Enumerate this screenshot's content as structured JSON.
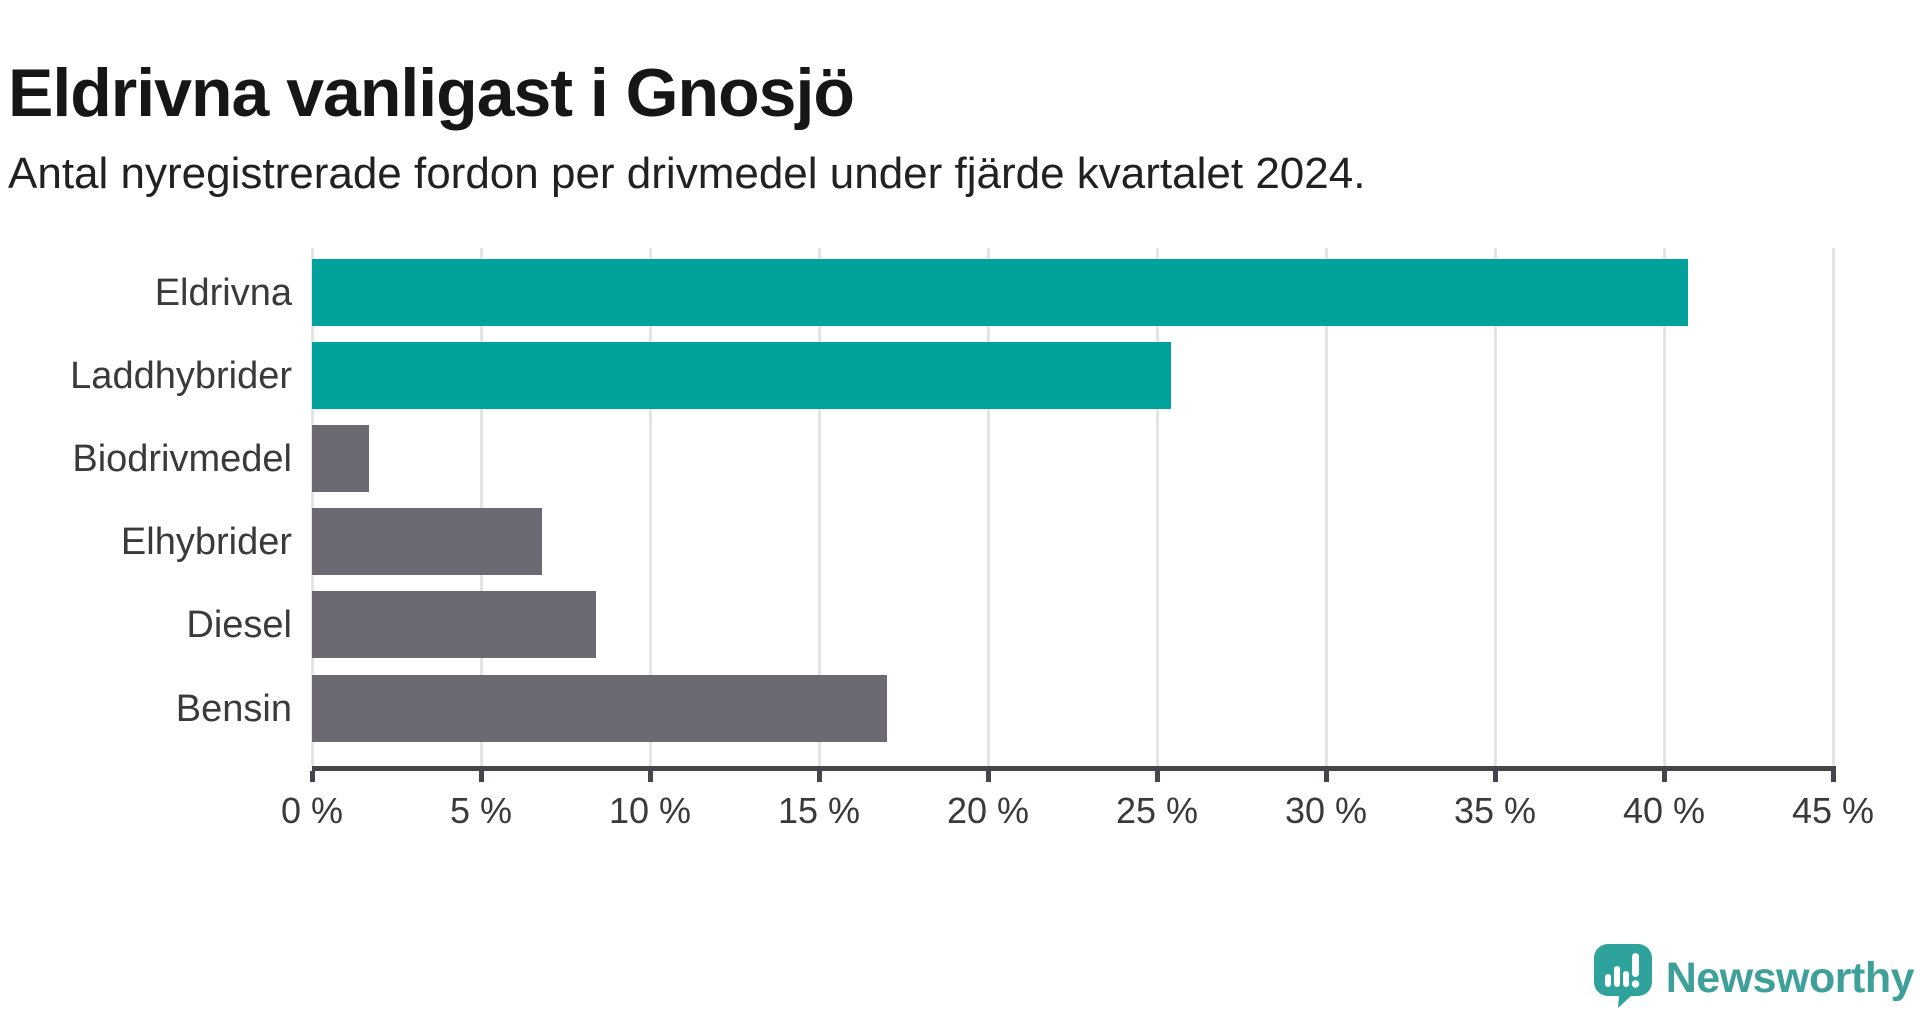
{
  "header": {
    "title": "Eldrivna vanligast i Gnosjö",
    "subtitle": "Antal nyregistrerade fordon per drivmedel under fjärde kvartalet 2024."
  },
  "chart_data": {
    "type": "bar",
    "orientation": "horizontal",
    "title": "Eldrivna vanligast i Gnosjö",
    "subtitle": "Antal nyregistrerade fordon per drivmedel under fjärde kvartalet 2024.",
    "categories": [
      "Eldrivna",
      "Laddhybrider",
      "Biodrivmedel",
      "Elhybrider",
      "Diesel",
      "Bensin"
    ],
    "values": [
      40.7,
      25.4,
      1.7,
      6.8,
      8.4,
      17.0
    ],
    "unit": "%",
    "xlim": [
      0,
      45
    ],
    "x_ticks": [
      0,
      5,
      10,
      15,
      20,
      25,
      30,
      35,
      40,
      45
    ],
    "x_tick_labels": [
      "0 %",
      "5 %",
      "10 %",
      "15 %",
      "20 %",
      "25 %",
      "30 %",
      "35 %",
      "40 %",
      "45 %"
    ],
    "bar_colors": [
      "#00A29B",
      "#00A29B",
      "#6D6972",
      "#6D6972",
      "#6D6972",
      "#6D6972"
    ],
    "grid": "vertical",
    "legend": "none"
  },
  "colors": {
    "accent_teal": "#00A29B",
    "bar_gray": "#6D6972",
    "axis": "#47444C",
    "gridline": "#E4E4E4",
    "text_dark": "#161616",
    "brand_teal": "#3FA09A"
  },
  "footer": {
    "brand_name": "Newsworthy",
    "logo_icon": "newsworthy-speech-bubble-chart-icon"
  }
}
